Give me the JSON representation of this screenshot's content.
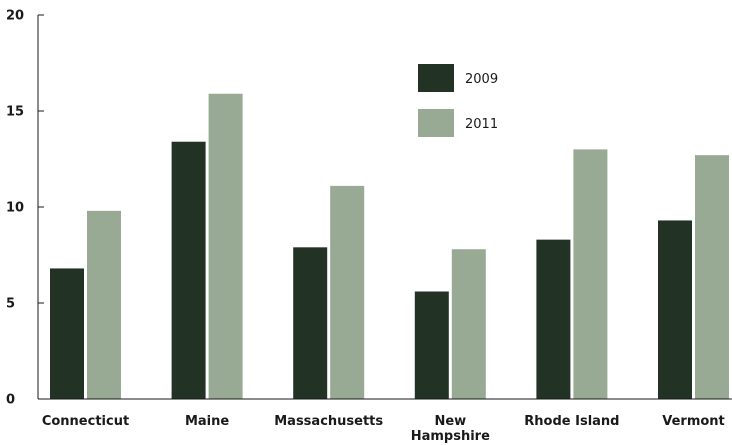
{
  "chart_data": {
    "type": "bar",
    "categories": [
      "Connecticut",
      "Maine",
      "Massachusetts",
      "New Hampshire",
      "Rhode Island",
      "Vermont"
    ],
    "category_lines": [
      [
        "Connecticut"
      ],
      [
        "Maine"
      ],
      [
        "Massachusetts"
      ],
      [
        "New",
        "Hampshire"
      ],
      [
        "Rhode Island"
      ],
      [
        "Vermont"
      ]
    ],
    "series": [
      {
        "name": "2009",
        "color": "#223326",
        "values": [
          6.8,
          13.4,
          7.9,
          5.6,
          8.3,
          9.3
        ]
      },
      {
        "name": "2011",
        "color": "#98aa94",
        "values": [
          9.8,
          15.9,
          11.1,
          7.8,
          13.0,
          12.7
        ]
      }
    ],
    "yticks": [
      0,
      5,
      10,
      15,
      20
    ],
    "ylim": [
      0,
      20
    ],
    "grid": false,
    "legend_position": "top-center"
  }
}
